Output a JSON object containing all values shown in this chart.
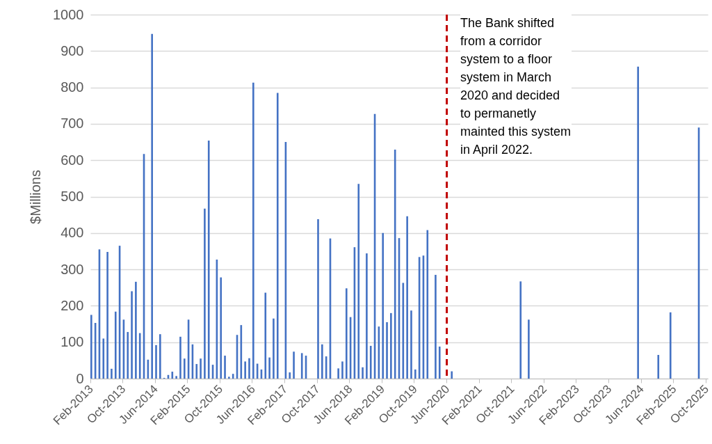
{
  "chart_data": {
    "type": "bar",
    "ylabel": "$Millions",
    "categories": [
      "Feb-2013",
      null,
      null,
      null,
      null,
      null,
      null,
      null,
      "Oct-2013",
      null,
      null,
      null,
      null,
      null,
      null,
      null,
      "Jun-2014",
      null,
      null,
      null,
      null,
      null,
      null,
      null,
      "Feb-2015",
      null,
      null,
      null,
      null,
      null,
      null,
      null,
      "Oct-2015",
      null,
      null,
      null,
      null,
      null,
      null,
      null,
      "Jun-2016",
      null,
      null,
      null,
      null,
      null,
      null,
      null,
      "Feb-2017",
      null,
      null,
      null,
      null,
      null,
      null,
      null,
      "Oct-2017",
      null,
      null,
      null,
      null,
      null,
      null,
      null,
      "Jun-2018",
      null,
      null,
      null,
      null,
      null,
      null,
      null,
      "Feb-2019",
      null,
      null,
      null,
      null,
      null,
      null,
      null,
      "Oct-2019",
      null,
      null,
      null,
      null,
      null,
      null,
      null,
      "Jun-2020",
      null,
      null,
      null,
      null,
      null,
      null,
      null,
      "Feb-2021",
      null,
      null,
      null,
      null,
      null,
      null,
      null,
      "Oct-2021",
      null,
      null,
      null,
      null,
      null,
      null,
      null,
      "Jun-2022",
      null,
      null,
      null,
      null,
      null,
      null,
      null,
      "Feb-2023",
      null,
      null,
      null,
      null,
      null,
      null,
      null,
      "Oct-2023",
      null,
      null,
      null,
      null,
      null,
      null,
      null,
      "Jun-2024",
      null,
      null,
      null,
      null,
      null,
      null,
      null,
      "Feb-2025",
      null,
      null,
      null,
      null,
      null,
      null,
      null,
      "Oct-2025"
    ],
    "values": [
      175,
      153,
      355,
      110,
      348,
      27,
      184,
      365,
      162,
      128,
      240,
      266,
      125,
      617,
      52,
      947,
      92,
      122,
      2,
      10,
      19,
      7,
      115,
      55,
      162,
      94,
      40,
      55,
      467,
      654,
      38,
      327,
      278,
      63,
      5,
      13,
      120,
      147,
      47,
      56,
      813,
      41,
      25,
      236,
      58,
      165,
      785,
      null,
      650,
      17,
      74,
      null,
      70,
      63,
      null,
      null,
      438,
      94,
      61,
      385,
      null,
      28,
      47,
      248,
      169,
      361,
      535,
      31,
      344,
      90,
      727,
      143,
      400,
      155,
      180,
      629,
      386,
      263,
      446,
      187,
      25,
      334,
      338,
      408,
      null,
      285,
      88,
      null,
      null,
      20,
      null,
      null,
      null,
      null,
      null,
      null,
      null,
      null,
      null,
      null,
      null,
      null,
      null,
      null,
      null,
      null,
      267,
      null,
      162,
      null,
      null,
      null,
      null,
      null,
      null,
      null,
      null,
      null,
      null,
      null,
      null,
      null,
      null,
      null,
      null,
      null,
      null,
      null,
      null,
      null,
      null,
      null,
      null,
      null,
      null,
      857,
      null,
      null,
      null,
      null,
      65,
      null,
      null,
      182,
      null,
      null,
      null,
      null,
      null,
      null,
      690,
      null,
      null
    ],
    "color": "#4472c4",
    "ylim": [
      0,
      1000
    ],
    "yticks": [
      0,
      100,
      200,
      300,
      400,
      500,
      600,
      700,
      800,
      900,
      1000
    ],
    "grid": "y",
    "ref_lines": [
      {
        "axis": "x",
        "value": "Jun-2020",
        "color": "#c00000",
        "line_style": "dashed"
      }
    ],
    "annotations": [
      "The Bank shifted from a corridor system to a floor system in March 2020 and decided to permanetly mainted this system in April 2022."
    ]
  }
}
